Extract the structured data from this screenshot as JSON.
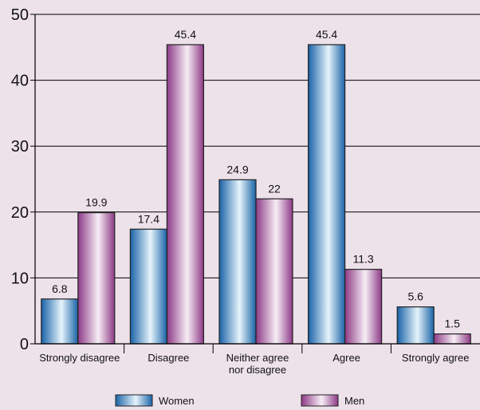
{
  "chart_data": {
    "type": "bar",
    "categories": [
      [
        "Strongly disagree"
      ],
      [
        "Disagree"
      ],
      [
        "Neither agree",
        "nor disagree"
      ],
      [
        "Agree"
      ],
      [
        "Strongly agree"
      ]
    ],
    "series": [
      {
        "name": "Women",
        "values": [
          6.8,
          17.4,
          24.9,
          45.4,
          5.6
        ],
        "labels": [
          "6.8",
          "17.4",
          "24.9",
          "45.4",
          "5.6"
        ]
      },
      {
        "name": "Men",
        "values": [
          19.9,
          45.4,
          22,
          11.3,
          1.5
        ],
        "labels": [
          "19.9",
          "45.4",
          "22",
          "11.3",
          "1.5"
        ]
      }
    ],
    "y_ticks": [
      "0",
      "10",
      "20",
      "30",
      "40",
      "50"
    ],
    "ylim": [
      0,
      50
    ],
    "grid": true,
    "legend_position": "bottom",
    "colors": {
      "women_dark": "#1a63a8",
      "women_light": "#e6f4fb",
      "men_dark": "#8d3a86",
      "men_light": "#f7eef6",
      "background": "#ede2ea",
      "grid": "#000000"
    }
  }
}
